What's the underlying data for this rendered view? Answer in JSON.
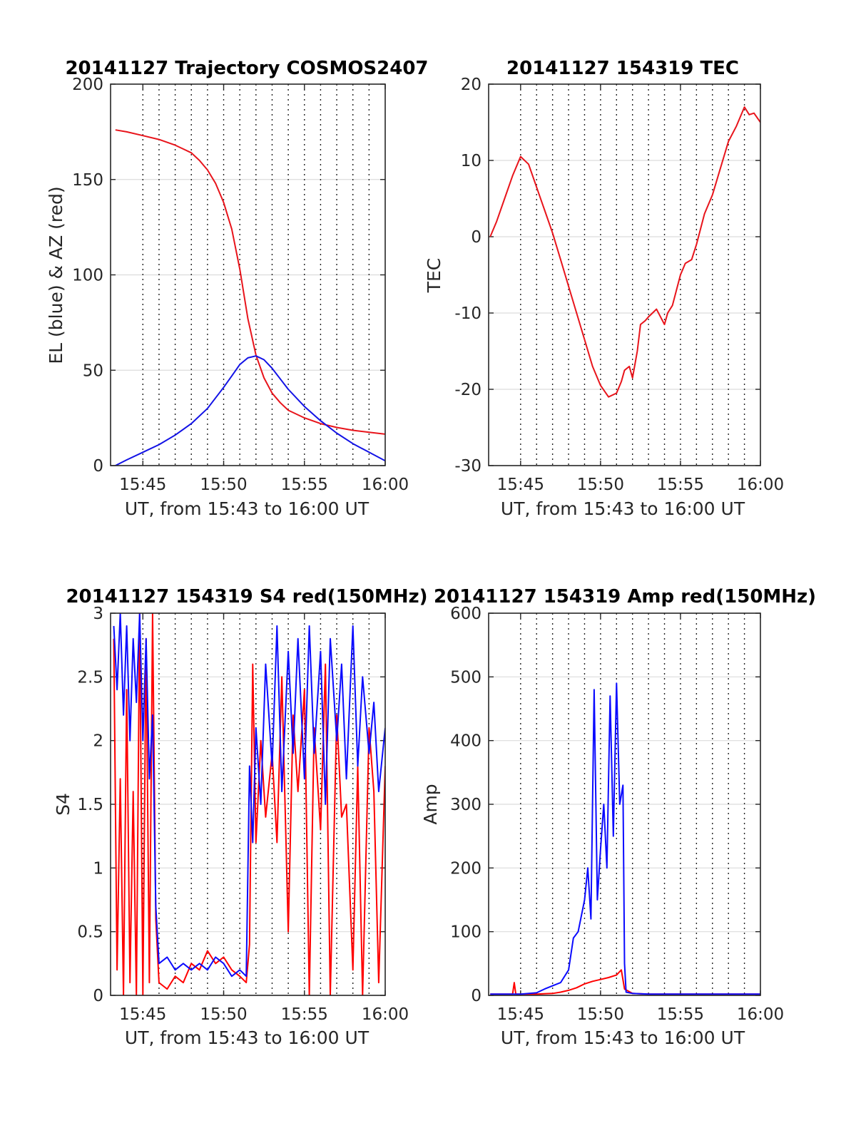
{
  "chart_data": [
    {
      "type": "line",
      "title": "20141127 Trajectory COSMOS2407",
      "xlabel": "UT, from 15:43 to 16:00 UT",
      "ylabel": "EL (blue) & AZ (red)",
      "xlim": [
        943,
        960
      ],
      "ylim": [
        0,
        200
      ],
      "xticks": [
        945,
        950,
        955,
        960
      ],
      "xtick_labels": [
        "15:45",
        "15:50",
        "15:55",
        "16:00"
      ],
      "yticks": [
        0,
        50,
        100,
        150,
        200
      ],
      "ytick_labels": [
        "0",
        "50",
        "100",
        "150",
        "200"
      ],
      "vgrid_minutes": [
        945,
        946,
        947,
        948,
        949,
        950,
        951,
        952,
        953,
        954,
        955,
        956,
        957,
        958,
        959
      ],
      "grid": true,
      "series": [
        {
          "color": "#e8141b",
          "x": [
            943.3,
            944,
            945,
            946,
            947,
            948,
            948.5,
            949,
            949.5,
            950,
            950.5,
            951,
            951.5,
            952,
            952.5,
            953,
            953.5,
            954,
            955,
            956,
            957,
            958,
            959,
            960
          ],
          "y": [
            176,
            175,
            173,
            171,
            168,
            164,
            160,
            155,
            148,
            138,
            124,
            103,
            77,
            58,
            46,
            38,
            33,
            29,
            25,
            22,
            20,
            18.5,
            17.5,
            16.5
          ]
        },
        {
          "color": "#1212e6",
          "x": [
            943.3,
            944,
            945,
            946,
            947,
            948,
            949,
            950,
            950.5,
            951,
            951.5,
            952,
            952.5,
            953,
            953.5,
            954,
            955,
            956,
            957,
            958,
            959,
            960
          ],
          "y": [
            0,
            3,
            7,
            11,
            16,
            22,
            30,
            41,
            47,
            53,
            56.5,
            57.5,
            55.5,
            51,
            45.5,
            40,
            31,
            23.5,
            17,
            11.5,
            7,
            2.5
          ]
        }
      ]
    },
    {
      "type": "line",
      "title": "20141127 154319 TEC",
      "xlabel": "UT, from 15:43 to 16:00 UT",
      "ylabel": "TEC",
      "xlim": [
        943,
        960
      ],
      "ylim": [
        -30,
        20
      ],
      "xticks": [
        945,
        950,
        955,
        960
      ],
      "xtick_labels": [
        "15:45",
        "15:50",
        "15:55",
        "16:00"
      ],
      "yticks": [
        -30,
        -20,
        -10,
        0,
        10,
        20
      ],
      "ytick_labels": [
        "-30",
        "-20",
        "-10",
        "0",
        "10",
        "20"
      ],
      "vgrid_minutes": [
        945,
        946,
        947,
        948,
        949,
        950,
        951,
        952,
        953,
        954,
        955,
        956,
        957,
        958,
        959
      ],
      "grid": true,
      "series": [
        {
          "color": "#e8141b",
          "x": [
            943.1,
            943.5,
            944,
            944.5,
            945,
            945.5,
            946,
            946.5,
            947,
            947.5,
            948,
            948.5,
            949,
            949.5,
            950,
            950.5,
            951,
            951.3,
            951.5,
            951.8,
            952,
            952.3,
            952.5,
            952.8,
            953,
            953.5,
            954,
            954.2,
            954.5,
            955,
            955.3,
            955.7,
            956,
            956.5,
            957,
            957.5,
            958,
            958.5,
            959,
            959.3,
            959.6,
            960
          ],
          "y": [
            0,
            2,
            5,
            8,
            10.5,
            9.5,
            6.5,
            3.5,
            0.5,
            -3,
            -6.5,
            -10,
            -13.5,
            -17,
            -19.5,
            -21,
            -20.5,
            -19,
            -17.5,
            -17,
            -18.5,
            -15,
            -11.5,
            -11,
            -10.5,
            -9.5,
            -11.5,
            -10,
            -9,
            -5,
            -3.5,
            -3,
            -1,
            3,
            5.5,
            9,
            12.5,
            14.5,
            17,
            16,
            16.2,
            15
          ]
        }
      ]
    },
    {
      "type": "line",
      "title": "20141127 154319 S4 red(150MHz)",
      "xlabel": "UT, from 15:43 to 16:00 UT",
      "ylabel": "S4",
      "xlim": [
        943,
        960
      ],
      "ylim": [
        0,
        3
      ],
      "xticks": [
        945,
        950,
        955,
        960
      ],
      "xtick_labels": [
        "15:45",
        "15:50",
        "15:55",
        "16:00"
      ],
      "yticks": [
        0,
        0.5,
        1,
        1.5,
        2,
        2.5,
        3
      ],
      "ytick_labels": [
        "0",
        "0.5",
        "1",
        "1.5",
        "2",
        "2.5",
        "3"
      ],
      "vgrid_minutes": [
        945,
        946,
        947,
        948,
        949,
        950,
        951,
        952,
        953,
        954,
        955,
        956,
        957,
        958,
        959
      ],
      "grid": true,
      "series": [
        {
          "color": "#ff0000",
          "x": [
            943.2,
            943.4,
            943.6,
            943.8,
            944,
            944.2,
            944.4,
            944.6,
            944.8,
            945,
            945.2,
            945.4,
            945.6,
            945.8,
            946,
            946.5,
            947,
            947.5,
            948,
            948.5,
            949,
            949.5,
            950,
            950.5,
            951,
            951.4,
            951.6,
            951.8,
            952,
            952.3,
            952.6,
            953,
            953.3,
            953.6,
            954,
            954.3,
            954.6,
            955,
            955.3,
            955.6,
            956,
            956.3,
            956.6,
            957,
            957.3,
            957.6,
            958,
            958.3,
            958.6,
            959,
            959.3,
            959.6,
            960
          ],
          "y": [
            2.8,
            0.2,
            1.7,
            0,
            2.4,
            0.1,
            1.6,
            0,
            3,
            0,
            2.8,
            0.1,
            3,
            0.6,
            0.1,
            0.05,
            0.15,
            0.1,
            0.25,
            0.2,
            0.35,
            0.25,
            0.3,
            0.2,
            0.15,
            0.1,
            0.4,
            2.6,
            1.2,
            2,
            1.4,
            1.9,
            1.2,
            2.5,
            0.5,
            2.2,
            1.6,
            2.4,
            0,
            2.1,
            1.3,
            2.6,
            0,
            2.2,
            1.4,
            1.5,
            0.2,
            1.8,
            0,
            2.1,
            1.6,
            0.1,
            1.8
          ]
        },
        {
          "color": "#0a0aff",
          "x": [
            943.2,
            943.4,
            943.6,
            943.8,
            944,
            944.2,
            944.4,
            944.6,
            944.8,
            945,
            945.2,
            945.4,
            945.6,
            945.8,
            946,
            946.5,
            947,
            947.5,
            948,
            948.5,
            949,
            949.5,
            950,
            950.5,
            951,
            951.4,
            951.6,
            951.8,
            952,
            952.3,
            952.6,
            953,
            953.3,
            953.6,
            954,
            954.3,
            954.6,
            955,
            955.3,
            955.6,
            956,
            956.3,
            956.6,
            957,
            957.3,
            957.6,
            958,
            958.3,
            958.6,
            959,
            959.3,
            959.6,
            960
          ],
          "y": [
            2.9,
            2.4,
            3,
            2.2,
            2.9,
            2,
            2.8,
            2.3,
            3,
            2,
            2.8,
            1.7,
            2.2,
            0.7,
            0.25,
            0.3,
            0.2,
            0.25,
            0.2,
            0.25,
            0.2,
            0.3,
            0.25,
            0.15,
            0.2,
            0.15,
            1.8,
            1.2,
            2.1,
            1.5,
            2.6,
            1.8,
            2.9,
            1.6,
            2.7,
            1.9,
            2.8,
            1.7,
            2.9,
            1.9,
            2.7,
            1.5,
            2.8,
            2,
            2.6,
            1.7,
            2.9,
            1.8,
            2.5,
            1.9,
            2.3,
            1.6,
            2.1
          ]
        }
      ]
    },
    {
      "type": "line",
      "title": "20141127 154319 Amp red(150MHz)",
      "xlabel": "UT, from 15:43 to 16:00 UT",
      "ylabel": "Amp",
      "xlim": [
        943,
        960
      ],
      "ylim": [
        0,
        600
      ],
      "xticks": [
        945,
        950,
        955,
        960
      ],
      "xtick_labels": [
        "15:45",
        "15:50",
        "15:55",
        "16:00"
      ],
      "yticks": [
        0,
        100,
        200,
        300,
        400,
        500,
        600
      ],
      "ytick_labels": [
        "0",
        "100",
        "200",
        "300",
        "400",
        "500",
        "600"
      ],
      "vgrid_minutes": [
        945,
        946,
        947,
        948,
        949,
        950,
        951,
        952,
        953,
        954,
        955,
        956,
        957,
        958,
        959
      ],
      "grid": true,
      "series": [
        {
          "color": "#ff0000",
          "x": [
            943.1,
            944,
            944.5,
            944.6,
            944.7,
            945,
            946,
            947,
            947.5,
            948,
            948.5,
            949,
            949.5,
            950,
            950.5,
            951,
            951.3,
            951.5,
            952,
            953,
            955,
            958,
            960
          ],
          "y": [
            2,
            2,
            2,
            20,
            2,
            2,
            2,
            3,
            5,
            8,
            12,
            18,
            22,
            25,
            28,
            32,
            40,
            10,
            3,
            2,
            2,
            2,
            2
          ]
        },
        {
          "color": "#0a0aff",
          "x": [
            943.1,
            944,
            945,
            946,
            946.5,
            947,
            947.5,
            948,
            948.3,
            948.6,
            949,
            949.2,
            949.4,
            949.6,
            949.8,
            950,
            950.2,
            950.4,
            950.6,
            950.8,
            951,
            951.2,
            951.4,
            951.5,
            951.6,
            952,
            953,
            955,
            958,
            960
          ],
          "y": [
            2,
            2,
            2,
            4,
            10,
            15,
            20,
            40,
            90,
            100,
            150,
            200,
            120,
            480,
            150,
            230,
            300,
            200,
            470,
            250,
            490,
            300,
            330,
            50,
            5,
            3,
            2,
            2,
            2,
            2
          ]
        }
      ]
    }
  ]
}
